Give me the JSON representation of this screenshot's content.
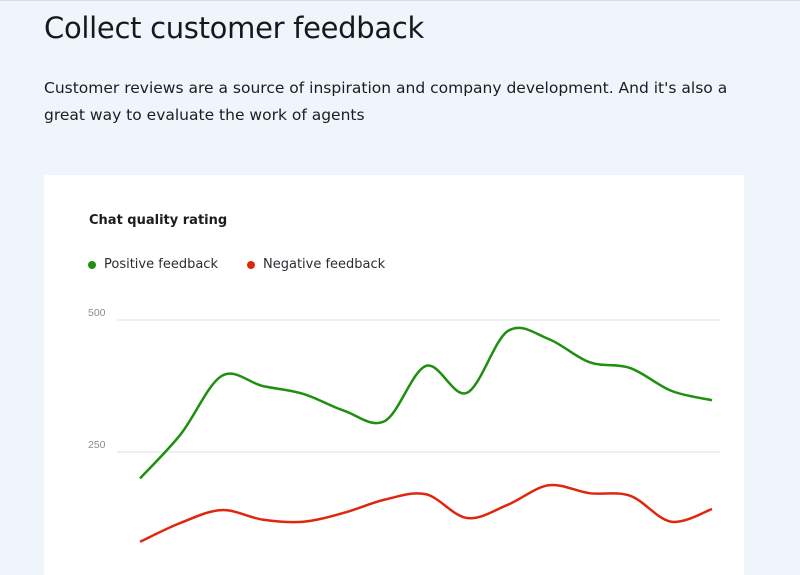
{
  "heading": "Collect customer feedback",
  "description": "Customer reviews are a source of inspiration and company development. And it's also a great way to evaluate the work of agents",
  "chart_data": {
    "type": "line",
    "title": "Chat quality rating",
    "legend_placement": "top-left",
    "grid": true,
    "ylim": [
      0,
      500
    ],
    "yticks": [
      250,
      500
    ],
    "x": [
      1,
      2,
      3,
      4,
      5,
      6,
      7,
      8,
      9,
      10,
      11,
      12,
      13,
      14,
      15
    ],
    "series": [
      {
        "name": "Positive feedback",
        "color": "#1f8f0f",
        "values": [
          200,
          284,
          394,
          375,
          360,
          328,
          309,
          413,
          362,
          479,
          464,
          420,
          409,
          366,
          348
        ]
      },
      {
        "name": "Negative feedback",
        "color": "#e0260e",
        "values": [
          80,
          116,
          140,
          122,
          118,
          135,
          160,
          170,
          125,
          150,
          187,
          172,
          167,
          118,
          142
        ]
      }
    ]
  }
}
